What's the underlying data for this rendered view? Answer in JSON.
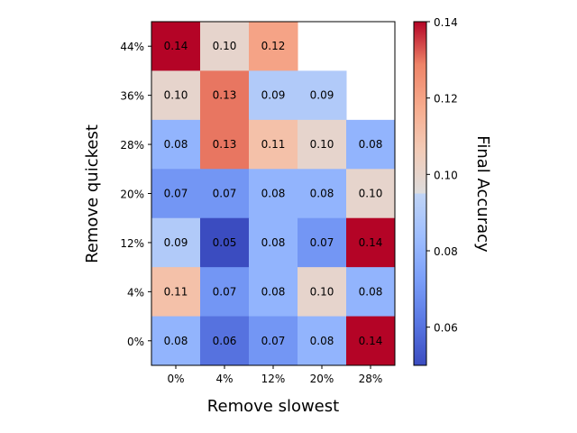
{
  "chart_data": {
    "type": "heatmap",
    "xlabel": "Remove slowest",
    "ylabel": "Remove quickest",
    "x_categories": [
      "0%",
      "4%",
      "12%",
      "20%",
      "28%"
    ],
    "y_categories": [
      "44%",
      "36%",
      "28%",
      "20%",
      "12%",
      "4%",
      "0%"
    ],
    "values": [
      [
        0.14,
        0.1,
        0.12,
        null,
        null
      ],
      [
        0.1,
        0.13,
        0.09,
        0.09,
        null
      ],
      [
        0.08,
        0.13,
        0.11,
        0.1,
        0.08
      ],
      [
        0.07,
        0.07,
        0.08,
        0.08,
        0.1
      ],
      [
        0.09,
        0.05,
        0.08,
        0.07,
        0.14
      ],
      [
        0.11,
        0.07,
        0.08,
        0.1,
        0.08
      ],
      [
        0.08,
        0.06,
        0.07,
        0.08,
        0.14
      ]
    ],
    "colorbar": {
      "label": "Final Accuracy",
      "colormap": "coolwarm",
      "range": [
        0.05,
        0.14
      ],
      "ticks": [
        "0.06",
        "0.08",
        "0.10",
        "0.12",
        "0.14"
      ]
    }
  }
}
